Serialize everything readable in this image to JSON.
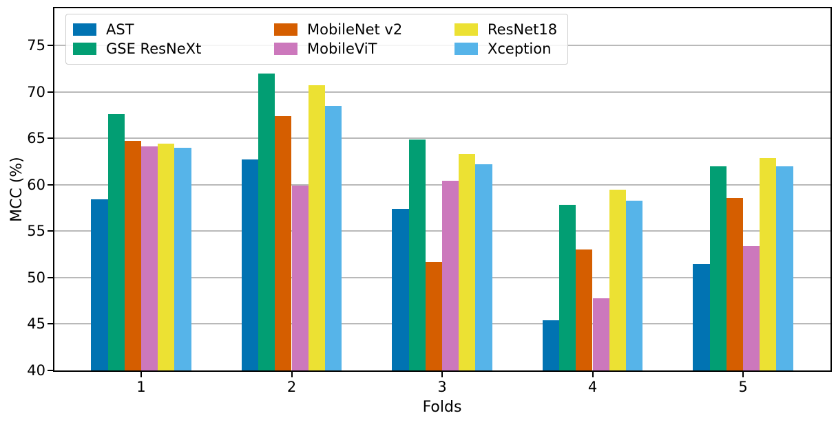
{
  "figure": {
    "background": "#ffffff",
    "spine_color": "#000000",
    "grid_color": "#b9b9b9",
    "text_color": "#000000"
  },
  "chart_data": {
    "type": "bar",
    "title": "",
    "xlabel": "Folds",
    "ylabel": "MCC (%)",
    "categories": [
      "1",
      "2",
      "3",
      "4",
      "5"
    ],
    "series": [
      {
        "name": "AST",
        "color": "#0173b2",
        "values": [
          58.4,
          62.7,
          57.4,
          45.4,
          51.5
        ]
      },
      {
        "name": "GSE ResNeXt",
        "color": "#029e73",
        "values": [
          67.6,
          72.0,
          64.9,
          57.8,
          62.0
        ]
      },
      {
        "name": "MobileNet v2",
        "color": "#d55e00",
        "values": [
          64.7,
          67.4,
          51.7,
          53.0,
          58.6
        ]
      },
      {
        "name": "MobileViT",
        "color": "#cc78bc",
        "values": [
          64.1,
          59.9,
          60.4,
          47.8,
          53.4
        ]
      },
      {
        "name": "ResNet18",
        "color": "#ece133",
        "values": [
          64.4,
          70.7,
          63.3,
          59.5,
          62.9
        ]
      },
      {
        "name": "Xception",
        "color": "#56b4e9",
        "values": [
          64.0,
          68.5,
          62.2,
          58.3,
          62.0
        ]
      }
    ],
    "ylim": [
      40,
      79
    ],
    "yticks": [
      40,
      45,
      50,
      55,
      60,
      65,
      70,
      75
    ],
    "grid": "horizontal",
    "legend_position": "upper-left",
    "legend_columns": 3
  }
}
